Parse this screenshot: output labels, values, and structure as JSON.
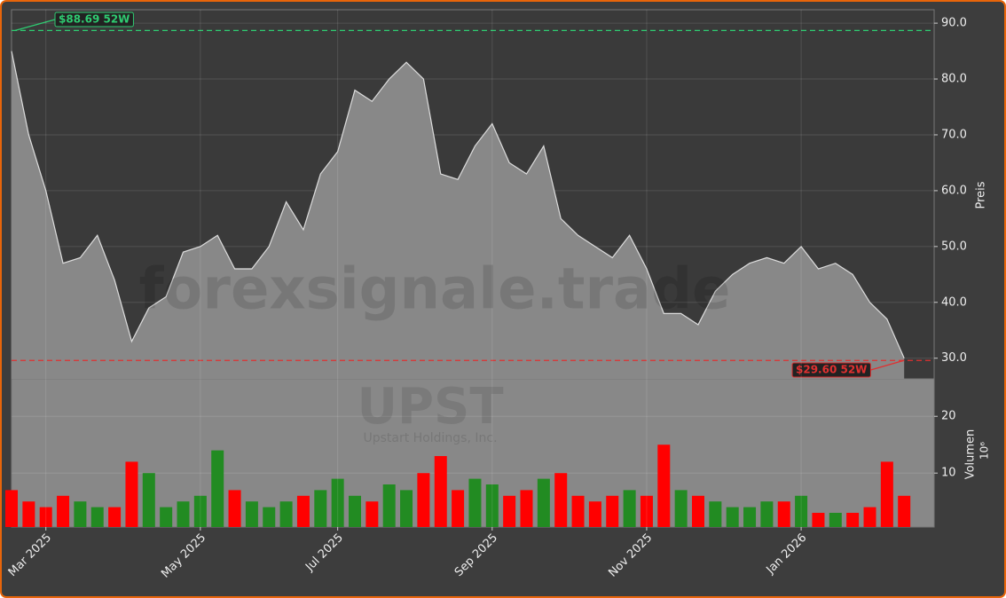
{
  "chart_data": [
    {
      "type": "area",
      "watermark": "forexsignale.trade",
      "ticker": "UPST",
      "company": "Upstart Holdings, Inc.",
      "ylabel": "Preis",
      "color": "#888888",
      "line_color": "#dddddd",
      "values": [
        85,
        70,
        60,
        47,
        48,
        52,
        44,
        33,
        39,
        41,
        49,
        50,
        52,
        46,
        46,
        50,
        58,
        53,
        63,
        67,
        78,
        76,
        80,
        83,
        80,
        63,
        62,
        68,
        72,
        65,
        63,
        68,
        55,
        52,
        50,
        48,
        52,
        46,
        38,
        38,
        36,
        42,
        45,
        47,
        48,
        47,
        50,
        46,
        47,
        45,
        40,
        37,
        30
      ],
      "ylim": [
        26.3,
        92.4
      ],
      "yticks": [
        {
          "value": 30,
          "label": "30.0"
        },
        {
          "value": 40,
          "label": "40.0"
        },
        {
          "value": 50,
          "label": "50.0"
        },
        {
          "value": 60,
          "label": "60.0"
        },
        {
          "value": 70,
          "label": "70.0"
        },
        {
          "value": 80,
          "label": "80.0"
        },
        {
          "value": 90,
          "label": "90.0"
        }
      ],
      "grid": true,
      "high": {
        "value": 88.69,
        "label": "$88.69 52W",
        "color": "#2ecc71"
      },
      "low": {
        "value": 29.6,
        "label": "$29.60 52W",
        "color": "#e03030"
      }
    },
    {
      "type": "bar",
      "ylabel": "Volumen",
      "unit": "10⁶",
      "categories": [
        null,
        null,
        "Mar 2025",
        null,
        null,
        null,
        null,
        null,
        null,
        null,
        null,
        "May 2025",
        null,
        null,
        null,
        null,
        null,
        null,
        null,
        "Jul 2025",
        null,
        null,
        null,
        null,
        null,
        null,
        null,
        null,
        "Sep 2025",
        null,
        null,
        null,
        null,
        null,
        null,
        null,
        null,
        "Nov 2025",
        null,
        null,
        null,
        null,
        null,
        null,
        null,
        null,
        "Jan 2026",
        null,
        null,
        null,
        null,
        null,
        null
      ],
      "values": [
        7,
        5,
        4,
        6,
        5,
        4,
        4,
        12,
        10,
        4,
        5,
        6,
        14,
        7,
        5,
        4,
        5,
        6,
        7,
        9,
        6,
        5,
        8,
        7,
        10,
        13,
        7,
        9,
        8,
        6,
        7,
        9,
        10,
        6,
        5,
        6,
        7,
        6,
        15,
        7,
        6,
        5,
        4,
        4,
        5,
        5,
        6,
        3,
        3,
        3,
        4,
        12,
        6
      ],
      "colors": [
        "#ff0000",
        "#ff0000",
        "#ff0000",
        "#ff0000",
        "#228b22",
        "#228b22",
        "#ff0000",
        "#ff0000",
        "#228b22",
        "#228b22",
        "#228b22",
        "#228b22",
        "#228b22",
        "#ff0000",
        "#228b22",
        "#228b22",
        "#228b22",
        "#ff0000",
        "#228b22",
        "#228b22",
        "#228b22",
        "#ff0000",
        "#228b22",
        "#228b22",
        "#ff0000",
        "#ff0000",
        "#ff0000",
        "#228b22",
        "#228b22",
        "#ff0000",
        "#ff0000",
        "#228b22",
        "#ff0000",
        "#ff0000",
        "#ff0000",
        "#ff0000",
        "#228b22",
        "#ff0000",
        "#ff0000",
        "#228b22",
        "#ff0000",
        "#228b22",
        "#228b22",
        "#228b22",
        "#228b22",
        "#ff0000",
        "#228b22",
        "#ff0000",
        "#228b22",
        "#ff0000",
        "#ff0000",
        "#ff0000",
        "#ff0000"
      ],
      "ylim": [
        0.5,
        26.6
      ],
      "yticks": [
        10,
        20
      ],
      "grid": true
    }
  ]
}
